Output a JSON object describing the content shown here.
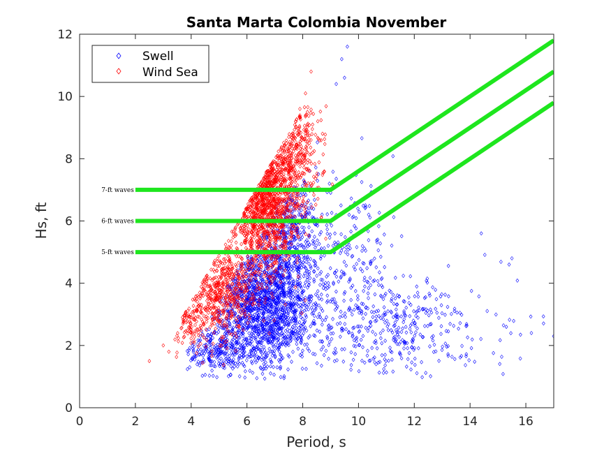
{
  "chart_data": {
    "type": "scatter",
    "title": "Santa Marta Colombia November",
    "xlabel": "Period, s",
    "ylabel": "Hs, ft",
    "xlim": [
      0,
      17
    ],
    "ylim": [
      0,
      12
    ],
    "xticks": [
      0,
      2,
      4,
      6,
      8,
      10,
      12,
      14,
      16
    ],
    "yticks": [
      0,
      2,
      4,
      6,
      8,
      10,
      12
    ],
    "grid": false,
    "legend_position": "top-left",
    "series": [
      {
        "name": "Swell",
        "color": "#0000ff",
        "marker": "diamond-open",
        "clusters": [
          {
            "x_mean": 6.6,
            "x_sd": 0.9,
            "y_mean": 3.3,
            "y_sd": 1.0,
            "n": 1700
          },
          {
            "x_mean": 7.6,
            "x_sd": 0.6,
            "y_mean": 5.5,
            "y_sd": 1.1,
            "n": 500
          },
          {
            "x_mean": 5.0,
            "x_sd": 0.7,
            "y_mean": 1.8,
            "y_sd": 0.4,
            "n": 260
          },
          {
            "x_mean": 10.8,
            "x_sd": 1.5,
            "y_mean": 2.6,
            "y_sd": 0.8,
            "n": 380
          },
          {
            "x_mean": 9.8,
            "x_sd": 0.8,
            "y_mean": 5.5,
            "y_sd": 1.6,
            "n": 130
          },
          {
            "x_mean": 13.5,
            "x_sd": 1.4,
            "y_mean": 2.6,
            "y_sd": 0.9,
            "n": 70
          }
        ],
        "outliers": [
          [
            9.6,
            11.6
          ],
          [
            9.4,
            11.2
          ],
          [
            9.5,
            10.6
          ],
          [
            9.2,
            10.4
          ],
          [
            15.5,
            4.8
          ],
          [
            15.4,
            4.6
          ],
          [
            14.4,
            5.6
          ],
          [
            16.2,
            2.4
          ],
          [
            15.3,
            2.6
          ],
          [
            17.0,
            2.3
          ]
        ]
      },
      {
        "name": "Wind Sea",
        "color": "#ff0000",
        "marker": "diamond-open",
        "clusters": [
          {
            "x_mean": 6.6,
            "x_sd": 0.7,
            "y_mean": 6.8,
            "y_sd": 1.2,
            "n": 2000
          },
          {
            "x_mean": 5.0,
            "x_sd": 0.7,
            "y_mean": 3.8,
            "y_sd": 0.8,
            "n": 650
          },
          {
            "x_mean": 7.6,
            "x_sd": 0.5,
            "y_mean": 8.6,
            "y_sd": 0.8,
            "n": 380
          },
          {
            "x_mean": 3.8,
            "x_sd": 0.5,
            "y_mean": 2.8,
            "y_sd": 0.5,
            "n": 150
          }
        ],
        "outliers": [
          [
            8.3,
            10.8
          ],
          [
            7.9,
            9.6
          ],
          [
            2.5,
            1.5
          ],
          [
            3.0,
            2.0
          ],
          [
            3.2,
            1.8
          ],
          [
            8.1,
            10.1
          ]
        ]
      }
    ],
    "thresholds": [
      {
        "label": "5-ft waves",
        "points": [
          [
            2,
            5
          ],
          [
            9,
            5
          ],
          [
            17,
            9.8
          ]
        ]
      },
      {
        "label": "6-ft waves",
        "points": [
          [
            2,
            6
          ],
          [
            9,
            6
          ],
          [
            17,
            10.8
          ]
        ]
      },
      {
        "label": "7-ft waves",
        "points": [
          [
            2,
            7
          ],
          [
            9,
            7
          ],
          [
            17,
            11.8
          ]
        ]
      }
    ],
    "threshold_color": "#1ee61e"
  }
}
